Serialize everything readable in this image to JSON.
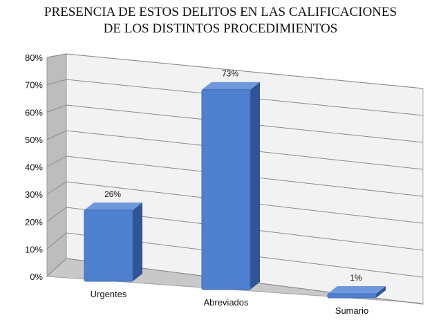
{
  "chart_data": {
    "type": "bar",
    "title_lines": [
      "PRESENCIA DE ESTOS DELITOS EN LAS CALIFICACIONES",
      "DE LOS DISTINTOS PROCEDIMIENTOS"
    ],
    "categories": [
      "Urgentes",
      "Abreviados",
      "Sumario"
    ],
    "values": [
      26,
      73,
      1
    ],
    "data_labels": [
      "26%",
      "73%",
      "1%"
    ],
    "y_ticks": [
      "0%",
      "10%",
      "20%",
      "30%",
      "40%",
      "50%",
      "60%",
      "70%",
      "80%"
    ],
    "ylim": [
      0,
      80
    ],
    "xlabel": "",
    "ylabel": "",
    "grid": true,
    "legend": "none",
    "style": "3d",
    "colors": {
      "bar_front": "#4f7fcf",
      "bar_top": "#6f98dc",
      "bar_side": "#2f5597",
      "wall": "#f2f2f2",
      "side_wall": "#bdbdbd",
      "floor": "#c8c8c8",
      "grid": "#8a8a8a"
    }
  }
}
